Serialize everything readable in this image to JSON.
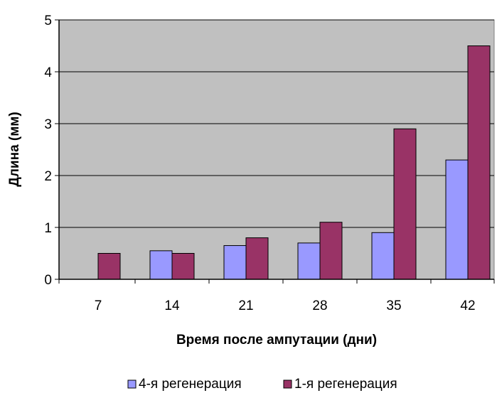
{
  "chart_data": {
    "type": "bar",
    "title": "",
    "xlabel": "Время после ампутации (дни)",
    "ylabel": "Длина (мм)",
    "categories": [
      "7",
      "14",
      "21",
      "28",
      "35",
      "42"
    ],
    "ylim": [
      0,
      5
    ],
    "yticks": [
      0,
      1,
      2,
      3,
      4,
      5
    ],
    "grid": true,
    "legend_position": "bottom",
    "series": [
      {
        "name": "4-я регенерация",
        "color": "#9999ff",
        "values": [
          0,
          0.55,
          0.65,
          0.7,
          0.9,
          2.3
        ]
      },
      {
        "name": "1-я регенерация",
        "color": "#993366",
        "values": [
          0.5,
          0.5,
          0.8,
          1.1,
          2.9,
          4.5
        ]
      }
    ],
    "plot_background": "#c0c0c0"
  }
}
